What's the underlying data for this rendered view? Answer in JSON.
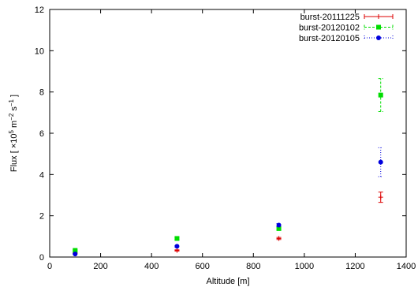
{
  "chart_data": {
    "type": "scatter",
    "xlabel": "Altitude [m]",
    "ylabel_parts": [
      "Flux [ ×10",
      "5",
      " m",
      "−2",
      " s",
      "−1",
      " ]"
    ],
    "xlim": [
      0,
      1400
    ],
    "ylim": [
      0,
      12
    ],
    "xticks": [
      0,
      200,
      400,
      600,
      800,
      1000,
      1200,
      1400
    ],
    "yticks": [
      0,
      2,
      4,
      6,
      8,
      10,
      12
    ],
    "grid": false,
    "legend_position": "top-right",
    "series": [
      {
        "name": "burst-20111225",
        "color": "#dd0000",
        "marker": "plus",
        "line": "solid",
        "points": [
          {
            "x": 100,
            "y": 0.2,
            "err": 0.03
          },
          {
            "x": 500,
            "y": 0.32,
            "err": 0.03
          },
          {
            "x": 900,
            "y": 0.9,
            "err": 0.05
          },
          {
            "x": 1300,
            "y": 2.9,
            "err": 0.25
          }
        ]
      },
      {
        "name": "burst-20120102",
        "color": "#00dd00",
        "marker": "square",
        "line": "dashed",
        "points": [
          {
            "x": 100,
            "y": 0.32,
            "err": 0.03
          },
          {
            "x": 500,
            "y": 0.9,
            "err": 0.05
          },
          {
            "x": 900,
            "y": 1.38,
            "err": 0.07
          },
          {
            "x": 1300,
            "y": 7.85,
            "err": 0.8
          }
        ]
      },
      {
        "name": "burst-20120105",
        "color": "#0000dd",
        "marker": "circle",
        "line": "dotted",
        "points": [
          {
            "x": 100,
            "y": 0.15,
            "err": 0.02
          },
          {
            "x": 500,
            "y": 0.52,
            "err": 0.04
          },
          {
            "x": 900,
            "y": 1.55,
            "err": 0.07
          },
          {
            "x": 1300,
            "y": 4.6,
            "err": 0.7
          }
        ]
      }
    ]
  }
}
